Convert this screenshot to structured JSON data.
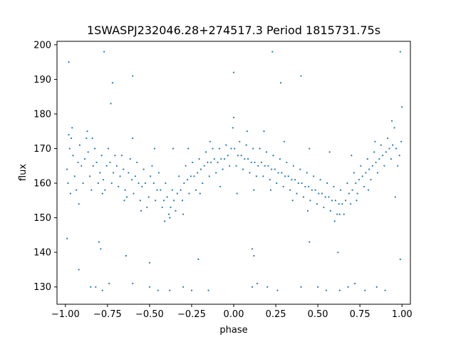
{
  "chart_data": {
    "type": "scatter",
    "title": "1SWASPJ232046.28+274517.3 Period 1815731.75s",
    "xlabel": "phase",
    "ylabel": "flux",
    "xlim": [
      -1.05,
      1.05
    ],
    "ylim": [
      125,
      201
    ],
    "xticks": [
      -1.0,
      -0.75,
      -0.5,
      -0.25,
      0.0,
      0.25,
      0.5,
      0.75,
      1.0
    ],
    "xtick_labels": [
      "−1.00",
      "−0.75",
      "−0.50",
      "−0.25",
      "0.00",
      "0.25",
      "0.50",
      "0.75",
      "1.00"
    ],
    "yticks": [
      130,
      140,
      150,
      160,
      170,
      180,
      190,
      200
    ],
    "ytick_labels": [
      "130",
      "140",
      "150",
      "160",
      "170",
      "180",
      "190",
      "200"
    ],
    "grid": false,
    "point_color": "#1f77b4",
    "series": [
      {
        "points": [
          [
            -0.99,
            164
          ],
          [
            -0.985,
            160
          ],
          [
            -0.975,
            170
          ],
          [
            -0.965,
            173
          ],
          [
            -0.955,
            168
          ],
          [
            -0.945,
            162
          ],
          [
            -0.935,
            158
          ],
          [
            -0.925,
            166
          ],
          [
            -0.915,
            171
          ],
          [
            -0.905,
            165
          ],
          [
            -0.895,
            160
          ],
          [
            -0.885,
            167
          ],
          [
            -0.875,
            173
          ],
          [
            -0.865,
            169
          ],
          [
            -0.855,
            162
          ],
          [
            -0.845,
            158
          ],
          [
            -0.835,
            165
          ],
          [
            -0.825,
            170
          ],
          [
            -0.815,
            166
          ],
          [
            -0.805,
            160
          ],
          [
            -0.795,
            163
          ],
          [
            -0.785,
            168
          ],
          [
            -0.775,
            161
          ],
          [
            -0.765,
            158
          ],
          [
            -0.755,
            165
          ],
          [
            -0.745,
            170
          ],
          [
            -0.735,
            166
          ],
          [
            -0.725,
            160
          ],
          [
            -0.715,
            163
          ],
          [
            -0.705,
            168
          ],
          [
            -0.695,
            165
          ],
          [
            -0.685,
            159
          ],
          [
            -0.675,
            162
          ],
          [
            -0.665,
            168
          ],
          [
            -0.655,
            164
          ],
          [
            -0.645,
            158
          ],
          [
            -0.635,
            156
          ],
          [
            -0.625,
            163
          ],
          [
            -0.615,
            167
          ],
          [
            -0.605,
            161
          ],
          [
            -0.595,
            157
          ],
          [
            -0.585,
            162
          ],
          [
            -0.575,
            166
          ],
          [
            -0.565,
            160
          ],
          [
            -0.555,
            155
          ],
          [
            -0.545,
            159
          ],
          [
            -0.535,
            164
          ],
          [
            -0.525,
            160
          ],
          [
            -0.515,
            153
          ],
          [
            -0.505,
            156
          ],
          [
            -0.495,
            162
          ],
          [
            -0.485,
            165
          ],
          [
            -0.475,
            160
          ],
          [
            -0.465,
            155
          ],
          [
            -0.455,
            158
          ],
          [
            -0.445,
            163
          ],
          [
            -0.435,
            158
          ],
          [
            -0.425,
            153
          ],
          [
            -0.415,
            155
          ],
          [
            -0.405,
            160
          ],
          [
            -0.395,
            156
          ],
          [
            -0.385,
            151
          ],
          [
            -0.375,
            153
          ],
          [
            -0.365,
            158
          ],
          [
            -0.355,
            155
          ],
          [
            -0.345,
            152
          ],
          [
            -0.335,
            157
          ],
          [
            -0.325,
            162
          ],
          [
            -0.315,
            158
          ],
          [
            -0.305,
            155
          ],
          [
            -0.295,
            160
          ],
          [
            -0.285,
            165
          ],
          [
            -0.275,
            161
          ],
          [
            -0.265,
            157
          ],
          [
            -0.255,
            162
          ],
          [
            -0.245,
            166
          ],
          [
            -0.235,
            162
          ],
          [
            -0.225,
            158
          ],
          [
            -0.215,
            163
          ],
          [
            -0.205,
            167
          ],
          [
            -0.195,
            164
          ],
          [
            -0.185,
            160
          ],
          [
            -0.175,
            165
          ],
          [
            -0.165,
            169
          ],
          [
            -0.155,
            166
          ],
          [
            -0.145,
            162
          ],
          [
            -0.135,
            166
          ],
          [
            -0.125,
            170
          ],
          [
            -0.115,
            167
          ],
          [
            -0.105,
            163
          ],
          [
            -0.095,
            166
          ],
          [
            -0.085,
            170
          ],
          [
            -0.075,
            167
          ],
          [
            -0.065,
            164
          ],
          [
            -0.055,
            167
          ],
          [
            -0.045,
            171
          ],
          [
            -0.035,
            168
          ],
          [
            -0.025,
            165
          ],
          [
            -0.015,
            170
          ],
          [
            -0.005,
            176
          ],
          [
            0.005,
            170
          ],
          [
            0.015,
            165
          ],
          [
            0.025,
            168
          ],
          [
            0.035,
            172
          ],
          [
            0.045,
            168
          ],
          [
            0.055,
            164
          ],
          [
            0.065,
            167
          ],
          [
            0.075,
            171
          ],
          [
            0.085,
            167
          ],
          [
            0.095,
            163
          ],
          [
            0.105,
            166
          ],
          [
            0.115,
            170
          ],
          [
            0.125,
            166
          ],
          [
            0.135,
            162
          ],
          [
            0.145,
            165
          ],
          [
            0.155,
            170
          ],
          [
            0.165,
            166
          ],
          [
            0.175,
            162
          ],
          [
            0.185,
            165
          ],
          [
            0.195,
            169
          ],
          [
            0.205,
            165
          ],
          [
            0.215,
            161
          ],
          [
            0.225,
            164
          ],
          [
            0.235,
            168
          ],
          [
            0.245,
            164
          ],
          [
            0.255,
            160
          ],
          [
            0.265,
            163
          ],
          [
            0.275,
            167
          ],
          [
            0.285,
            163
          ],
          [
            0.295,
            159
          ],
          [
            0.305,
            162
          ],
          [
            0.315,
            166
          ],
          [
            0.325,
            162
          ],
          [
            0.335,
            158
          ],
          [
            0.345,
            161
          ],
          [
            0.355,
            165
          ],
          [
            0.365,
            161
          ],
          [
            0.375,
            157
          ],
          [
            0.385,
            160
          ],
          [
            0.395,
            164
          ],
          [
            0.405,
            160
          ],
          [
            0.415,
            156
          ],
          [
            0.425,
            159
          ],
          [
            0.435,
            163
          ],
          [
            0.445,
            159
          ],
          [
            0.455,
            155
          ],
          [
            0.465,
            158
          ],
          [
            0.475,
            162
          ],
          [
            0.485,
            158
          ],
          [
            0.495,
            154
          ],
          [
            0.505,
            157
          ],
          [
            0.515,
            161
          ],
          [
            0.525,
            157
          ],
          [
            0.535,
            153
          ],
          [
            0.545,
            156
          ],
          [
            0.555,
            160
          ],
          [
            0.565,
            156
          ],
          [
            0.575,
            152
          ],
          [
            0.585,
            155
          ],
          [
            0.595,
            159
          ],
          [
            0.605,
            155
          ],
          [
            0.615,
            151
          ],
          [
            0.625,
            154
          ],
          [
            0.635,
            158
          ],
          [
            0.645,
            154
          ],
          [
            0.655,
            151
          ],
          [
            0.665,
            155
          ],
          [
            0.675,
            160
          ],
          [
            0.685,
            157
          ],
          [
            0.695,
            154
          ],
          [
            0.705,
            158
          ],
          [
            0.715,
            163
          ],
          [
            0.725,
            160
          ],
          [
            0.735,
            157
          ],
          [
            0.745,
            161
          ],
          [
            0.755,
            165
          ],
          [
            0.765,
            162
          ],
          [
            0.775,
            159
          ],
          [
            0.785,
            163
          ],
          [
            0.795,
            167
          ],
          [
            0.805,
            164
          ],
          [
            0.815,
            161
          ],
          [
            0.825,
            165
          ],
          [
            0.835,
            169
          ],
          [
            0.845,
            166
          ],
          [
            0.855,
            163
          ],
          [
            0.865,
            167
          ],
          [
            0.875,
            171
          ],
          [
            0.885,
            168
          ],
          [
            0.895,
            165
          ],
          [
            0.905,
            169
          ],
          [
            0.915,
            173
          ],
          [
            0.925,
            170
          ],
          [
            0.935,
            167
          ],
          [
            0.945,
            171
          ],
          [
            0.955,
            176
          ],
          [
            0.965,
            170
          ],
          [
            0.975,
            165
          ],
          [
            0.985,
            168
          ],
          [
            0.995,
            172
          ],
          [
            -0.98,
            174
          ],
          [
            -0.96,
            176
          ],
          [
            -0.87,
            175
          ],
          [
            -0.84,
            173
          ],
          [
            -0.73,
            183
          ],
          [
            -0.6,
            173
          ],
          [
            -0.47,
            170
          ],
          [
            -0.36,
            170
          ],
          [
            -0.27,
            170
          ],
          [
            -0.14,
            172
          ],
          [
            0.0,
            179
          ],
          [
            0.08,
            175
          ],
          [
            0.18,
            175
          ],
          [
            0.3,
            172
          ],
          [
            0.45,
            170
          ],
          [
            0.57,
            169
          ],
          [
            0.7,
            168
          ],
          [
            0.84,
            172
          ],
          [
            0.94,
            178
          ],
          [
            1.0,
            182
          ],
          [
            -0.97,
            157
          ],
          [
            -0.92,
            154
          ],
          [
            -0.78,
            157
          ],
          [
            -0.65,
            155
          ],
          [
            -0.55,
            152
          ],
          [
            -0.41,
            149
          ],
          [
            -0.38,
            150
          ],
          [
            -0.3,
            151
          ],
          [
            -0.2,
            157
          ],
          [
            -0.08,
            159
          ],
          [
            0.02,
            157
          ],
          [
            0.12,
            158
          ],
          [
            0.22,
            158
          ],
          [
            0.35,
            155
          ],
          [
            0.44,
            152
          ],
          [
            0.6,
            149
          ],
          [
            0.63,
            151
          ],
          [
            0.73,
            155
          ],
          [
            0.8,
            158
          ],
          [
            0.96,
            156
          ],
          [
            -0.92,
            135
          ],
          [
            -0.8,
            143
          ],
          [
            -0.79,
            141
          ],
          [
            -0.64,
            139
          ],
          [
            -0.5,
            137
          ],
          [
            -0.21,
            138
          ],
          [
            0.11,
            141
          ],
          [
            0.12,
            139
          ],
          [
            0.45,
            143
          ],
          [
            0.62,
            140
          ],
          [
            -0.99,
            144
          ],
          [
            0.99,
            138
          ],
          [
            -0.85,
            130
          ],
          [
            -0.82,
            130
          ],
          [
            -0.78,
            129
          ],
          [
            -0.74,
            131
          ],
          [
            -0.6,
            131
          ],
          [
            -0.5,
            130
          ],
          [
            -0.45,
            129
          ],
          [
            -0.38,
            129
          ],
          [
            -0.3,
            130
          ],
          [
            -0.25,
            129
          ],
          [
            -0.15,
            129
          ],
          [
            0.11,
            130
          ],
          [
            0.14,
            131
          ],
          [
            0.2,
            130
          ],
          [
            0.26,
            129
          ],
          [
            0.4,
            130
          ],
          [
            0.5,
            130
          ],
          [
            0.55,
            129
          ],
          [
            0.63,
            129
          ],
          [
            0.68,
            130
          ],
          [
            0.72,
            131
          ],
          [
            0.78,
            129
          ],
          [
            0.85,
            130
          ],
          [
            0.9,
            129
          ],
          [
            -0.77,
            198
          ],
          [
            -0.72,
            189
          ],
          [
            -0.6,
            191
          ],
          [
            0.0,
            192
          ],
          [
            0.23,
            198
          ],
          [
            0.28,
            189
          ],
          [
            0.4,
            191
          ],
          [
            0.99,
            198
          ],
          [
            -0.98,
            195
          ]
        ]
      }
    ]
  }
}
